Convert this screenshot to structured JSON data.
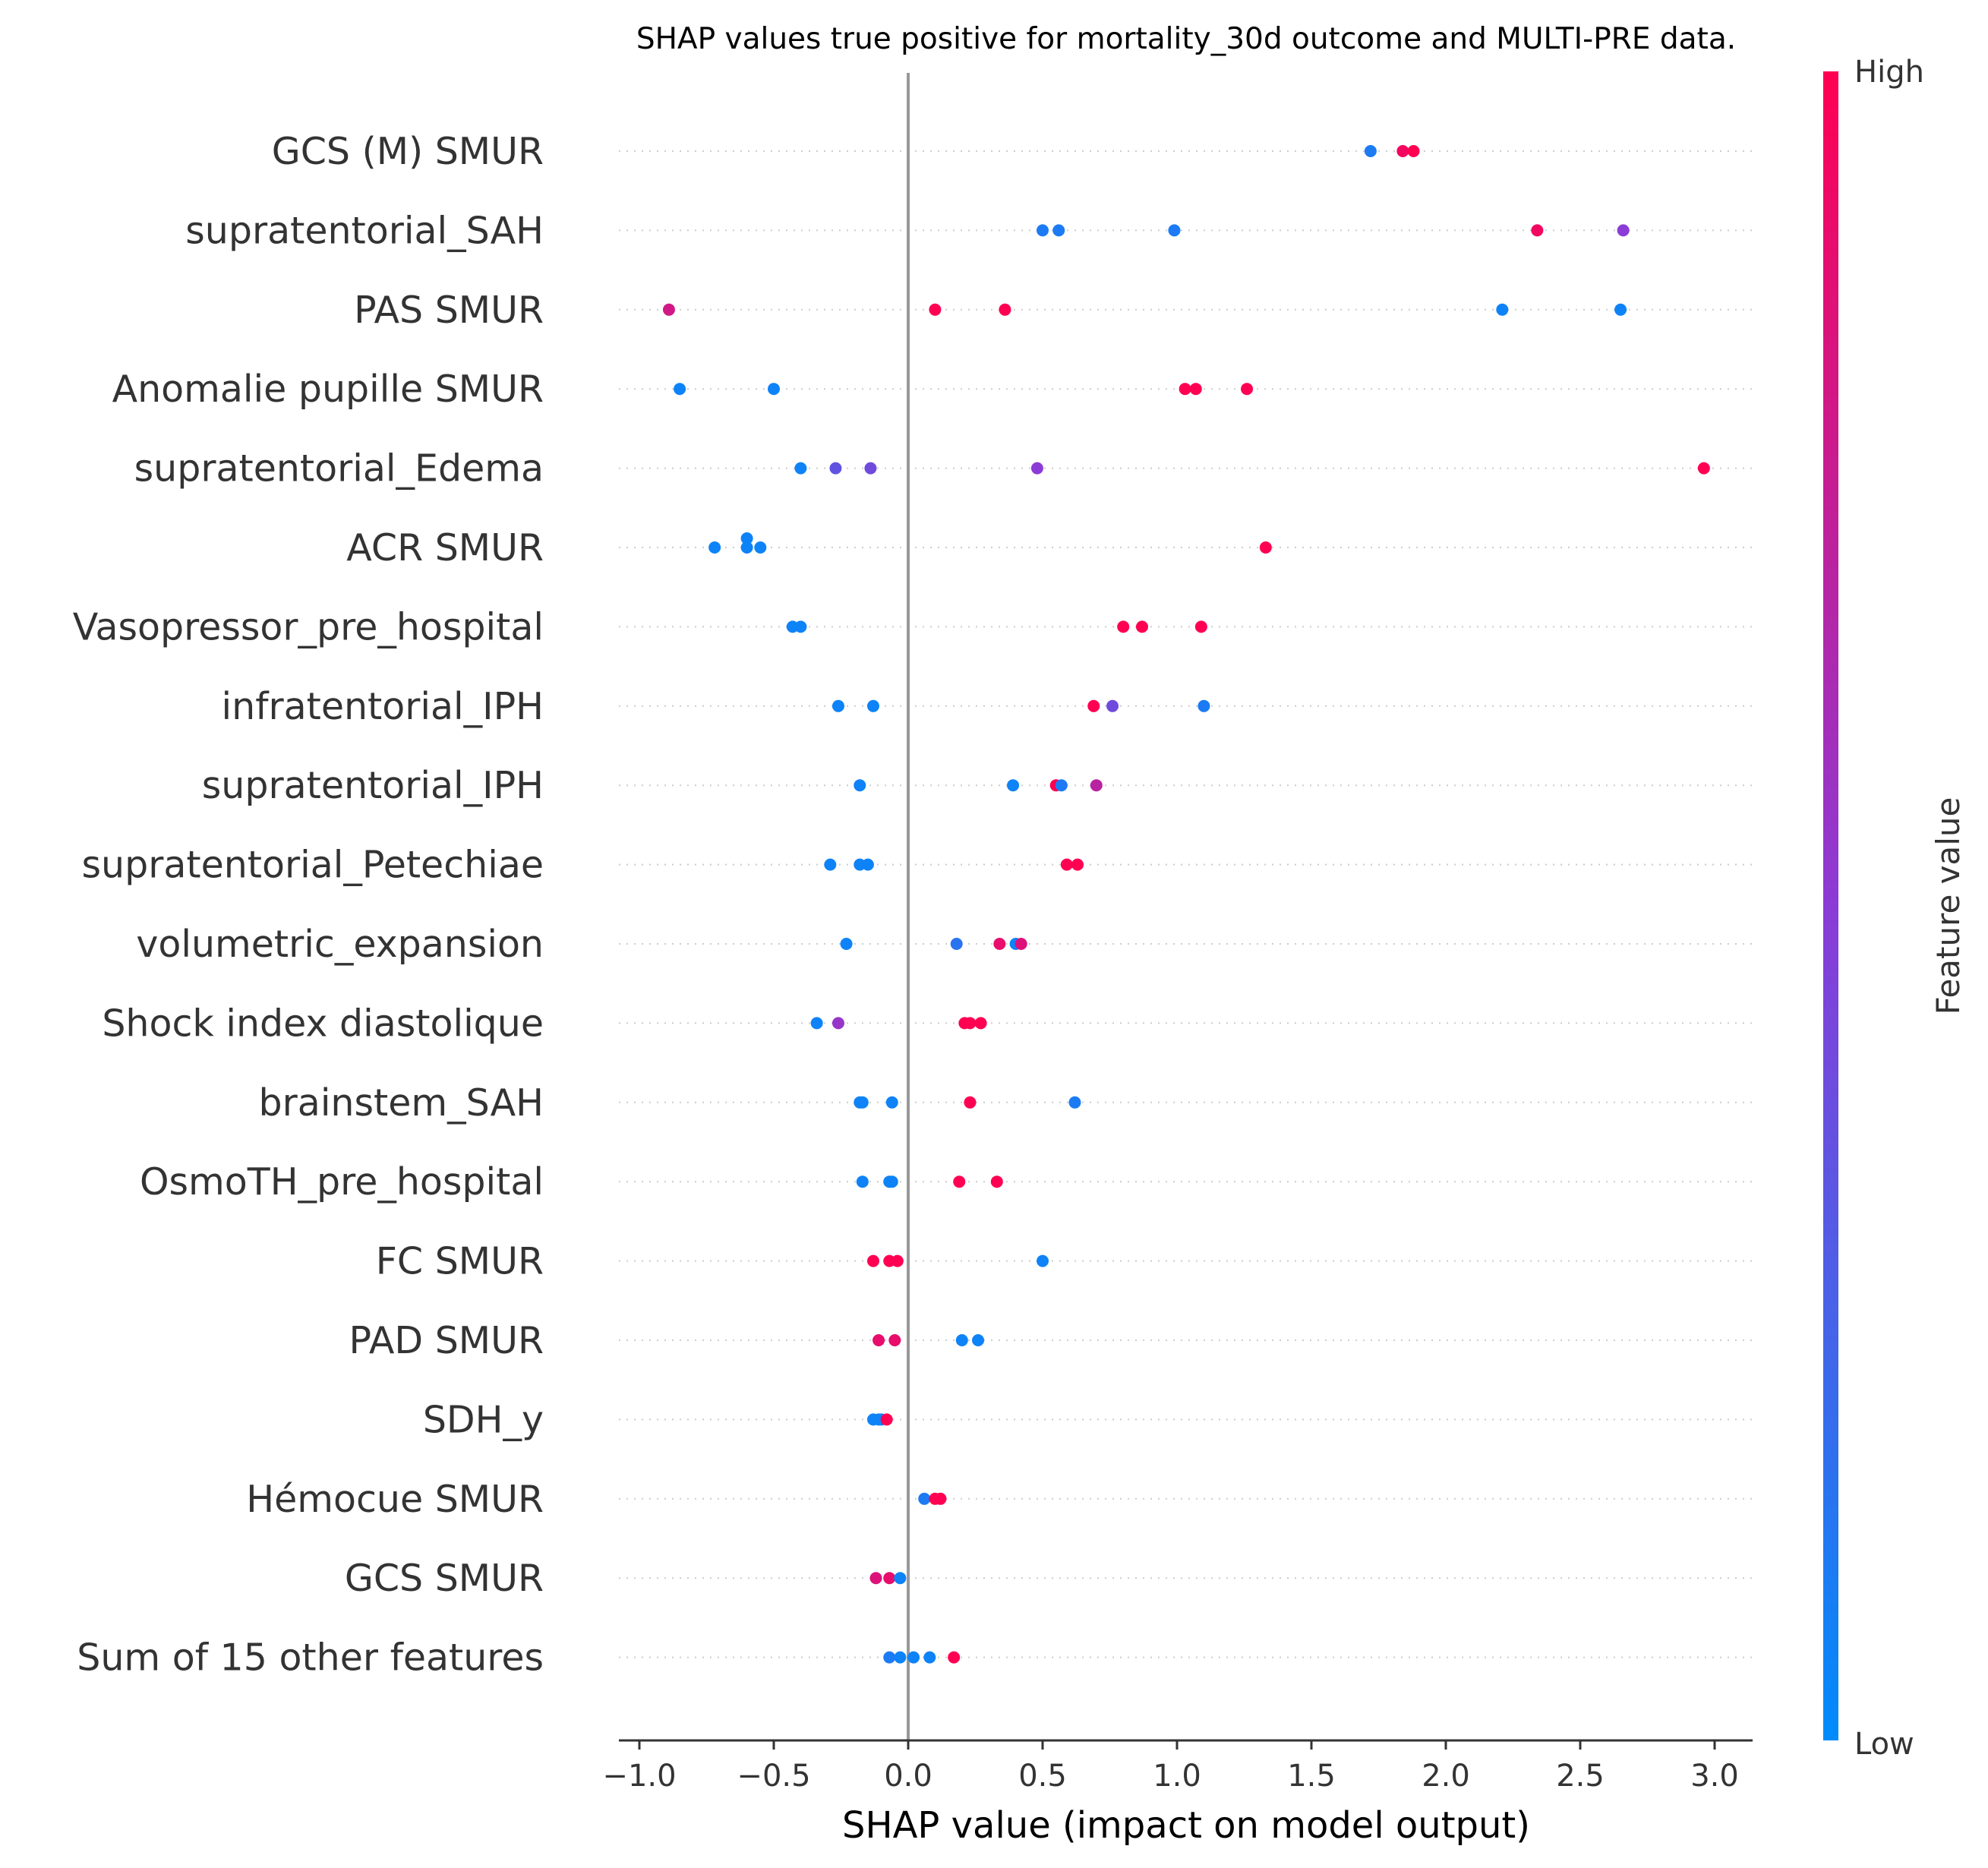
{
  "chart_data": {
    "type": "scatter",
    "title": "SHAP values true positive for mortality_30d outcome and MULTI-PRE data.",
    "xlabel": "SHAP value (impact on model output)",
    "xlim": [
      -1.08,
      3.15
    ],
    "xticks": [
      -1.0,
      -0.5,
      0.0,
      0.5,
      1.0,
      1.5,
      2.0,
      2.5,
      3.0
    ],
    "xtick_labels": [
      "−1.0",
      "−0.5",
      "0.0",
      "0.5",
      "1.0",
      "1.5",
      "2.0",
      "2.5",
      "3.0"
    ],
    "grid": "dotted horizontal lines per feature",
    "colorbar": {
      "title": "Feature value",
      "high_label": "High",
      "low_label": "Low",
      "low_color": "#008bfb",
      "high_color": "#ff0052"
    },
    "features": [
      {
        "name": "GCS (M) SMUR",
        "points": [
          [
            1.72,
            0.0,
            0.1
          ],
          [
            1.84,
            0.0,
            0.95
          ],
          [
            1.88,
            0.0,
            1.0
          ]
        ]
      },
      {
        "name": "supratentorial_SAH",
        "points": [
          [
            0.5,
            0.0,
            0.1
          ],
          [
            0.56,
            0.0,
            0.1
          ],
          [
            0.99,
            0.0,
            0.1
          ],
          [
            2.34,
            0.0,
            0.95
          ],
          [
            2.66,
            0.0,
            0.5
          ]
        ]
      },
      {
        "name": "PAS  SMUR",
        "points": [
          [
            -0.89,
            0.0,
            0.8
          ],
          [
            0.1,
            0.0,
            1.0
          ],
          [
            0.36,
            0.0,
            1.0
          ],
          [
            2.21,
            0.0,
            0.05
          ],
          [
            2.65,
            0.0,
            0.05
          ]
        ]
      },
      {
        "name": "Anomalie pupille SMUR",
        "points": [
          [
            -0.85,
            0.0,
            0.05
          ],
          [
            -0.5,
            0.0,
            0.05
          ],
          [
            1.03,
            0.0,
            1.0
          ],
          [
            1.07,
            0.0,
            1.0
          ],
          [
            1.26,
            0.0,
            1.0
          ]
        ]
      },
      {
        "name": "supratentorial_Edema",
        "points": [
          [
            -0.4,
            0.0,
            0.05
          ],
          [
            -0.27,
            0.0,
            0.35
          ],
          [
            -0.14,
            0.0,
            0.4
          ],
          [
            0.48,
            0.0,
            0.5
          ],
          [
            2.96,
            0.0,
            1.0
          ]
        ]
      },
      {
        "name": "ACR SMUR",
        "points": [
          [
            -0.6,
            0.2,
            0.05
          ],
          [
            -0.72,
            0.0,
            0.05
          ],
          [
            -0.6,
            0.0,
            0.05
          ],
          [
            -0.55,
            0.0,
            0.05
          ],
          [
            1.33,
            0.0,
            1.0
          ]
        ]
      },
      {
        "name": "Vasopressor_pre_hospital",
        "points": [
          [
            -0.43,
            0.0,
            0.05
          ],
          [
            -0.4,
            0.0,
            0.05
          ],
          [
            0.8,
            0.0,
            1.0
          ],
          [
            0.87,
            0.0,
            1.0
          ],
          [
            1.09,
            0.0,
            1.0
          ]
        ]
      },
      {
        "name": "infratentorial_IPH",
        "points": [
          [
            -0.26,
            0.0,
            0.05
          ],
          [
            -0.13,
            0.0,
            0.05
          ],
          [
            0.69,
            0.0,
            1.0
          ],
          [
            0.76,
            0.0,
            0.4
          ],
          [
            1.1,
            0.0,
            0.1
          ]
        ]
      },
      {
        "name": "supratentorial_IPH",
        "points": [
          [
            -0.18,
            0.0,
            0.05
          ],
          [
            0.39,
            0.0,
            0.05
          ],
          [
            0.55,
            0.0,
            1.0
          ],
          [
            0.57,
            0.0,
            0.1
          ],
          [
            0.7,
            0.0,
            0.7
          ]
        ]
      },
      {
        "name": "supratentorial_Petechiae",
        "points": [
          [
            -0.29,
            0.0,
            0.05
          ],
          [
            -0.18,
            0.0,
            0.05
          ],
          [
            -0.15,
            0.0,
            0.05
          ],
          [
            0.59,
            0.0,
            1.0
          ],
          [
            0.63,
            0.0,
            1.0
          ]
        ]
      },
      {
        "name": "volumetric_expansion",
        "points": [
          [
            -0.23,
            0.0,
            0.05
          ],
          [
            0.18,
            0.0,
            0.15
          ],
          [
            0.34,
            0.0,
            0.9
          ],
          [
            0.4,
            0.0,
            0.05
          ],
          [
            0.42,
            0.0,
            0.85
          ]
        ]
      },
      {
        "name": "Shock index diastolique",
        "points": [
          [
            -0.34,
            0.0,
            0.05
          ],
          [
            -0.26,
            0.0,
            0.55
          ],
          [
            0.21,
            0.0,
            1.0
          ],
          [
            0.23,
            0.0,
            1.0
          ],
          [
            0.27,
            0.0,
            1.0
          ]
        ]
      },
      {
        "name": "brainstem_SAH",
        "points": [
          [
            -0.18,
            0.0,
            0.05
          ],
          [
            -0.17,
            0.0,
            0.05
          ],
          [
            -0.06,
            0.0,
            0.05
          ],
          [
            0.23,
            0.0,
            1.0
          ],
          [
            0.62,
            0.0,
            0.1
          ]
        ]
      },
      {
        "name": "OsmoTH_pre_hospital",
        "points": [
          [
            -0.17,
            0.0,
            0.05
          ],
          [
            -0.07,
            0.0,
            0.05
          ],
          [
            -0.06,
            0.0,
            0.05
          ],
          [
            0.19,
            0.0,
            1.0
          ],
          [
            0.33,
            0.0,
            1.0
          ]
        ]
      },
      {
        "name": "FC SMUR",
        "points": [
          [
            -0.13,
            0.0,
            1.0
          ],
          [
            -0.07,
            0.0,
            1.0
          ],
          [
            -0.04,
            0.0,
            1.0
          ],
          [
            0.5,
            0.0,
            0.05
          ]
        ]
      },
      {
        "name": "PAD  SMUR",
        "points": [
          [
            -0.11,
            0.0,
            0.9
          ],
          [
            -0.05,
            0.0,
            0.9
          ],
          [
            0.2,
            0.0,
            0.05
          ],
          [
            0.26,
            0.0,
            0.05
          ]
        ]
      },
      {
        "name": "SDH_y",
        "points": [
          [
            -0.13,
            0.0,
            0.05
          ],
          [
            -0.11,
            0.0,
            0.05
          ],
          [
            -0.1,
            0.0,
            0.05
          ],
          [
            -0.08,
            0.0,
            1.0
          ]
        ]
      },
      {
        "name": "Hémocue SMUR",
        "points": [
          [
            0.06,
            0.0,
            0.1
          ],
          [
            0.1,
            0.0,
            1.0
          ],
          [
            0.12,
            0.0,
            1.0
          ]
        ]
      },
      {
        "name": "GCS SMUR",
        "points": [
          [
            -0.12,
            0.0,
            0.85
          ],
          [
            -0.07,
            0.0,
            0.9
          ],
          [
            -0.03,
            0.0,
            0.05
          ]
        ]
      },
      {
        "name": "Sum of 15 other features",
        "points": [
          [
            -0.07,
            0.0,
            0.1
          ],
          [
            -0.03,
            0.0,
            0.05
          ],
          [
            0.02,
            0.0,
            0.05
          ],
          [
            0.08,
            0.0,
            0.05
          ],
          [
            0.17,
            0.0,
            1.0
          ]
        ]
      }
    ]
  }
}
